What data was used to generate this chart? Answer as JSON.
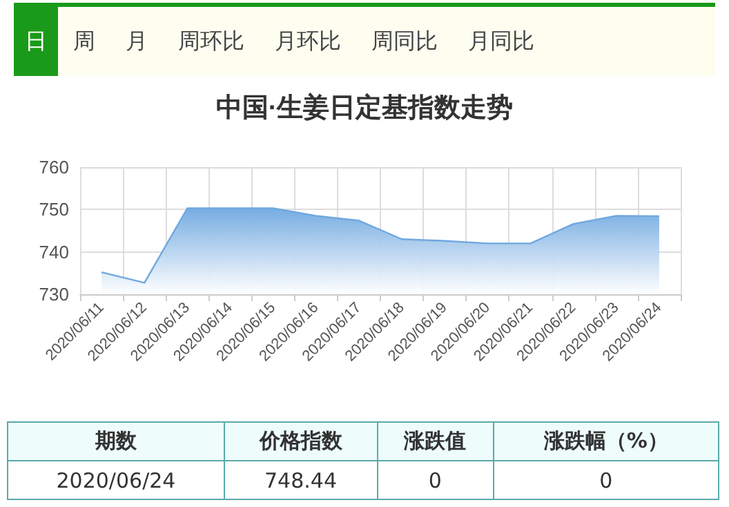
{
  "chart_data": {
    "type": "area",
    "title": "中国·生姜日定基指数走势",
    "categories": [
      "2020/06/11",
      "2020/06/12",
      "2020/06/13",
      "2020/06/14",
      "2020/06/15",
      "2020/06/16",
      "2020/06/17",
      "2020/06/18",
      "2020/06/19",
      "2020/06/20",
      "2020/06/21",
      "2020/06/22",
      "2020/06/23",
      "2020/06/24"
    ],
    "series": [
      {
        "color": "#6fa8e0",
        "values": [
          735.2,
          732.7,
          750.3,
          750.3,
          750.3,
          748.5,
          747.4,
          743.0,
          742.6,
          742.0,
          742.0,
          746.6,
          748.5,
          748.44
        ]
      }
    ],
    "ylim": [
      730,
      760
    ],
    "yticks": [
      730,
      740,
      750,
      760
    ],
    "grid": true,
    "marker": "none",
    "annotations": [
      "日",
      "周",
      "月",
      "周环比",
      "月环比",
      "周同比",
      "月同比",
      "期数",
      "价格指数",
      "涨跌值",
      "涨跌幅（%）",
      "2020/06/24",
      "748.44",
      "0",
      "0"
    ]
  }
}
